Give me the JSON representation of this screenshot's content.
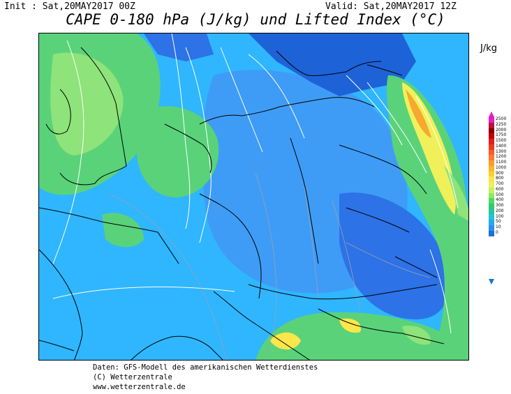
{
  "header": {
    "init": "Init : Sat,20MAY2017 00Z",
    "valid": "Valid: Sat,20MAY2017 12Z",
    "title": "CAPE 0-180 hPa (J/kg) und Lifted Index (°C)"
  },
  "legend": {
    "unit": "J/kg",
    "levels": [
      "2500",
      "2250",
      "2000",
      "1750",
      "1500",
      "1400",
      "1300",
      "1200",
      "1100",
      "1000",
      "900",
      "800",
      "700",
      "600",
      "500",
      "400",
      "300",
      "200",
      "100",
      "50",
      "10",
      "0"
    ],
    "colors": [
      "#e81cc4",
      "#b41240",
      "#8b0000",
      "#c80000",
      "#e02020",
      "#f03a1e",
      "#ff5a2a",
      "#ff7a30",
      "#ff9a30",
      "#ffb52e",
      "#ffd02a",
      "#ffe34a",
      "#f0f05a",
      "#c8f064",
      "#90e860",
      "#50d860",
      "#2fc86e",
      "#29c4a8",
      "#27bfe0",
      "#2aa8f0",
      "#2b8ff0",
      "#1e6fd8"
    ],
    "top_color": "#e81cc4",
    "bottom_color": "#1e6fd8"
  },
  "map": {
    "colors": {
      "base_cyan": "#2fb6ff",
      "light_blue": "#3f9cf6",
      "dark_blue": "#1e62d8",
      "green": "#5ad27a",
      "light_green": "#8ee37a",
      "yellow": "#ffe64a",
      "orange": "#f7a830"
    }
  },
  "footer": {
    "line1": "Daten: GFS-Modell des amerikanischen Wetterdienstes",
    "line2": "(C) Wetterzentrale",
    "line3": "www.wetterzentrale.de"
  }
}
